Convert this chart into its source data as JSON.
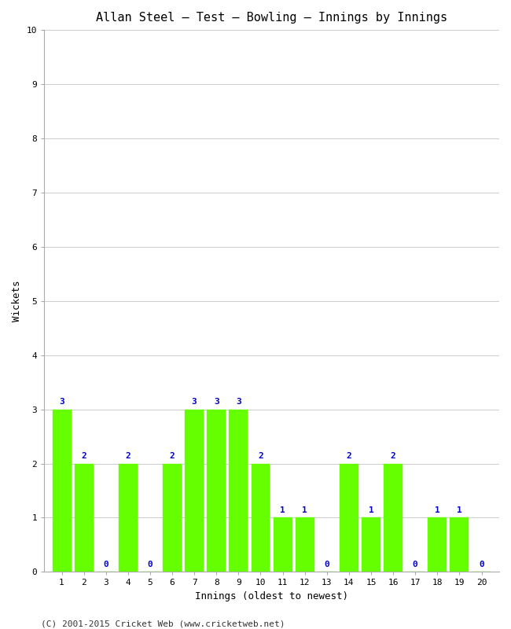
{
  "title": "Allan Steel – Test – Bowling – Innings by Innings",
  "xlabel": "Innings (oldest to newest)",
  "ylabel": "Wickets",
  "innings": [
    1,
    2,
    3,
    4,
    5,
    6,
    7,
    8,
    9,
    10,
    11,
    12,
    13,
    14,
    15,
    16,
    17,
    18,
    19,
    20
  ],
  "wickets": [
    3,
    2,
    0,
    2,
    0,
    2,
    3,
    3,
    3,
    2,
    1,
    1,
    0,
    2,
    1,
    2,
    0,
    1,
    1,
    0
  ],
  "bar_color": "#66ff00",
  "bar_edge_color": "#66ff00",
  "label_color": "#0000cc",
  "background_color": "#ffffff",
  "grid_color": "#cccccc",
  "ylim": [
    0,
    10
  ],
  "yticks": [
    0,
    1,
    2,
    3,
    4,
    5,
    6,
    7,
    8,
    9,
    10
  ],
  "xticks": [
    1,
    2,
    3,
    4,
    5,
    6,
    7,
    8,
    9,
    10,
    11,
    12,
    13,
    14,
    15,
    16,
    17,
    18,
    19,
    20
  ],
  "title_fontsize": 11,
  "axis_label_fontsize": 9,
  "tick_fontsize": 8,
  "bar_label_fontsize": 8,
  "copyright": "(C) 2001-2015 Cricket Web (www.cricketweb.net)",
  "copyright_fontsize": 8
}
